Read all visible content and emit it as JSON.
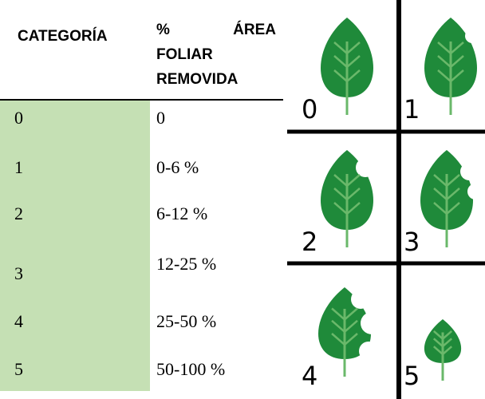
{
  "table": {
    "header": [
      "CATEGORÍA",
      "% ÁREA FOLIAR REMOVIDA"
    ],
    "rows": [
      [
        "0",
        "0"
      ],
      [
        "1",
        "0-6 %"
      ],
      [
        "2",
        "6-12 %"
      ],
      [
        "3",
        "12-25 %"
      ],
      [
        "4",
        "25-50 %"
      ],
      [
        "5",
        "50-100 %"
      ]
    ]
  },
  "figure": {
    "labels": [
      "0",
      "1",
      "2",
      "3",
      "4",
      "5"
    ]
  }
}
